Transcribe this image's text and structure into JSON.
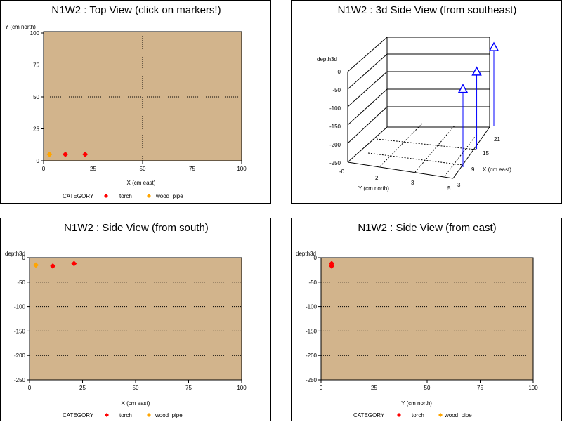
{
  "colors": {
    "plot_bg": "#d2b48c",
    "torch": "#ff0000",
    "wood_pipe": "#ffa500",
    "marker_3d": "#0000ff",
    "grid": "#000000"
  },
  "legend": {
    "label": "CATEGORY",
    "torch": "torch",
    "wood_pipe": "wood_pipe"
  },
  "chart_data": [
    {
      "id": "top",
      "type": "scatter",
      "title": "N1W2 : Top View (click on markers!)",
      "xlabel": "X (cm east)",
      "ylabel": "Y (cm north)",
      "xlim": [
        0,
        100
      ],
      "ylim": [
        0,
        100
      ],
      "xticks": [
        "0",
        "25",
        "50",
        "75",
        "100"
      ],
      "yticks": [
        "0",
        "25",
        "50",
        "75",
        "100"
      ],
      "legend": true,
      "points": [
        {
          "x": 3,
          "y": 5,
          "series": "wood_pipe"
        },
        {
          "x": 11,
          "y": 5,
          "series": "torch"
        },
        {
          "x": 21,
          "y": 5,
          "series": "torch"
        }
      ]
    },
    {
      "id": "side3d",
      "type": "scatter",
      "title": "N1W2 : 3d Side View (from southeast)",
      "zlabel": "depth3d",
      "ylabel": "Y (cm north)",
      "xlabel": "X (cm east)",
      "zticks": [
        "0",
        "-50",
        "-100",
        "-150",
        "-200",
        "-250"
      ],
      "yticks": [
        "-0",
        "2",
        "3",
        "5"
      ],
      "xticks": [
        "3",
        "9",
        "15",
        "21"
      ],
      "points": [
        {
          "x": 3,
          "y": 5,
          "z": -15
        },
        {
          "x": 11,
          "y": 5,
          "z": -17
        },
        {
          "x": 21,
          "y": 5,
          "z": -12
        }
      ]
    },
    {
      "id": "south",
      "type": "scatter",
      "title": "N1W2 : Side View (from south)",
      "xlabel": "X (cm east)",
      "ylabel": "depth3d",
      "xlim": [
        0,
        100
      ],
      "ylim": [
        -250,
        0
      ],
      "xticks": [
        "0",
        "25",
        "50",
        "75",
        "100"
      ],
      "yticks": [
        "0",
        "-50",
        "-100",
        "-150",
        "-200",
        "-250"
      ],
      "legend": true,
      "points": [
        {
          "x": 3,
          "y": -15,
          "series": "wood_pipe"
        },
        {
          "x": 11,
          "y": -17,
          "series": "torch"
        },
        {
          "x": 21,
          "y": -12,
          "series": "torch"
        }
      ]
    },
    {
      "id": "east",
      "type": "scatter",
      "title": "N1W2 : Side View (from east)",
      "xlabel": "Y (cm north)",
      "ylabel": "depth3d",
      "xlim": [
        0,
        100
      ],
      "ylim": [
        -250,
        0
      ],
      "xticks": [
        "0",
        "25",
        "50",
        "75",
        "100"
      ],
      "yticks": [
        "0",
        "-50",
        "-100",
        "-150",
        "-200",
        "-250"
      ],
      "legend": true,
      "points": [
        {
          "x": 5,
          "y": -15,
          "series": "wood_pipe"
        },
        {
          "x": 5,
          "y": -17,
          "series": "torch"
        },
        {
          "x": 5,
          "y": -12,
          "series": "torch"
        }
      ]
    }
  ]
}
